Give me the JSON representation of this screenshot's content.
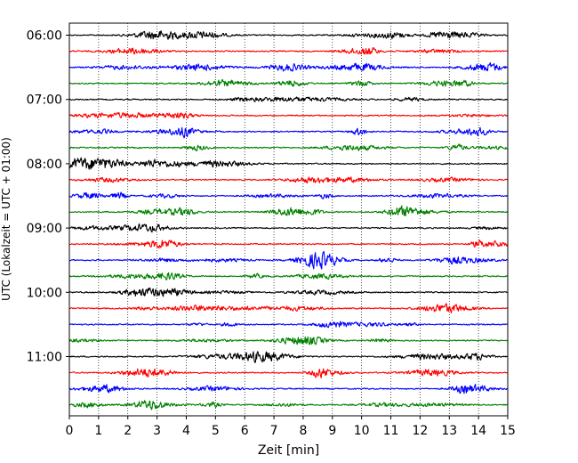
{
  "chart_data": {
    "type": "line",
    "title": "",
    "xlabel": "Zeit  [min]",
    "ylabel": "UTC (Lokalzeit = UTC + 01:00)",
    "xlim": [
      0,
      15
    ],
    "x_ticks": [
      "0",
      "1",
      "2",
      "3",
      "4",
      "5",
      "6",
      "7",
      "8",
      "9",
      "10",
      "11",
      "12",
      "13",
      "14",
      "15"
    ],
    "y_ticks": [
      "06:00",
      "07:00",
      "08:00",
      "09:00",
      "10:00",
      "11:00"
    ],
    "grid": "vertical dotted at each minute",
    "trace_interval_minutes": 15,
    "trace_colors": [
      "#000000",
      "#ff0000",
      "#0000ff",
      "#008000"
    ],
    "traces": [
      {
        "start": "06:00",
        "color": "#000000"
      },
      {
        "start": "06:15",
        "color": "#ff0000"
      },
      {
        "start": "06:30",
        "color": "#0000ff"
      },
      {
        "start": "06:45",
        "color": "#008000"
      },
      {
        "start": "07:00",
        "color": "#000000"
      },
      {
        "start": "07:15",
        "color": "#ff0000"
      },
      {
        "start": "07:30",
        "color": "#0000ff"
      },
      {
        "start": "07:45",
        "color": "#008000"
      },
      {
        "start": "08:00",
        "color": "#000000"
      },
      {
        "start": "08:15",
        "color": "#ff0000"
      },
      {
        "start": "08:30",
        "color": "#0000ff"
      },
      {
        "start": "08:45",
        "color": "#008000"
      },
      {
        "start": "09:00",
        "color": "#000000"
      },
      {
        "start": "09:15",
        "color": "#ff0000"
      },
      {
        "start": "09:30",
        "color": "#0000ff"
      },
      {
        "start": "09:45",
        "color": "#008000"
      },
      {
        "start": "10:00",
        "color": "#000000"
      },
      {
        "start": "10:15",
        "color": "#ff0000"
      },
      {
        "start": "10:30",
        "color": "#0000ff"
      },
      {
        "start": "10:45",
        "color": "#008000"
      },
      {
        "start": "11:00",
        "color": "#000000"
      },
      {
        "start": "11:15",
        "color": "#ff0000"
      },
      {
        "start": "11:30",
        "color": "#0000ff"
      },
      {
        "start": "11:45",
        "color": "#008000"
      }
    ]
  }
}
